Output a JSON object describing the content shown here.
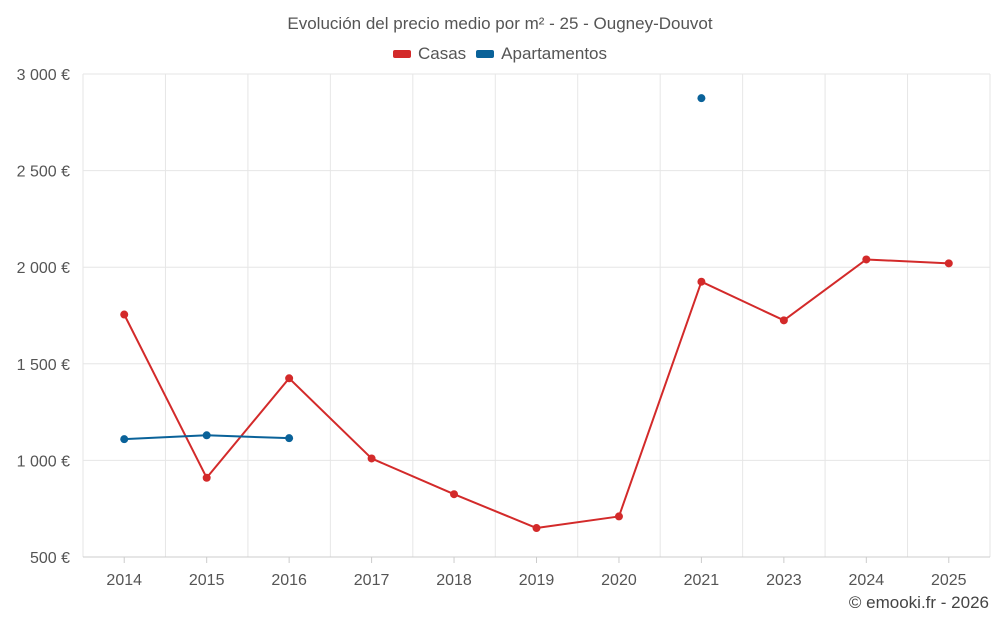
{
  "title": "Evolución del precio medio por m² - 25 - Ougney-Douvot",
  "credit": "© emooki.fr - 2026",
  "colors": {
    "casas": "#d32a2a",
    "apartamentos": "#0a6299",
    "grid": "#e6e6e6",
    "axis_text": "#555555"
  },
  "chart_data": {
    "type": "line",
    "title": "Evolución del precio medio por m² - 25 - Ougney-Douvot",
    "categories": [
      "2014",
      "2015",
      "2016",
      "2017",
      "2018",
      "2019",
      "2020",
      "2021",
      "2023",
      "2024",
      "2025"
    ],
    "ylim": [
      500,
      3000
    ],
    "yticks": [
      500,
      1000,
      1500,
      2000,
      2500,
      3000
    ],
    "ytick_labels": [
      "500 €",
      "1 000 €",
      "1 500 €",
      "2 000 €",
      "2 500 €",
      "3 000 €"
    ],
    "legend_position": "top-center",
    "grid": true,
    "series": [
      {
        "name": "Casas",
        "color": "#d32a2a",
        "values": [
          1755,
          910,
          1425,
          1010,
          825,
          650,
          710,
          1925,
          1725,
          2040,
          2020
        ]
      },
      {
        "name": "Apartamentos",
        "color": "#0a6299",
        "values": [
          1110,
          1130,
          1115,
          null,
          null,
          null,
          null,
          2875,
          null,
          null,
          null
        ]
      }
    ]
  }
}
